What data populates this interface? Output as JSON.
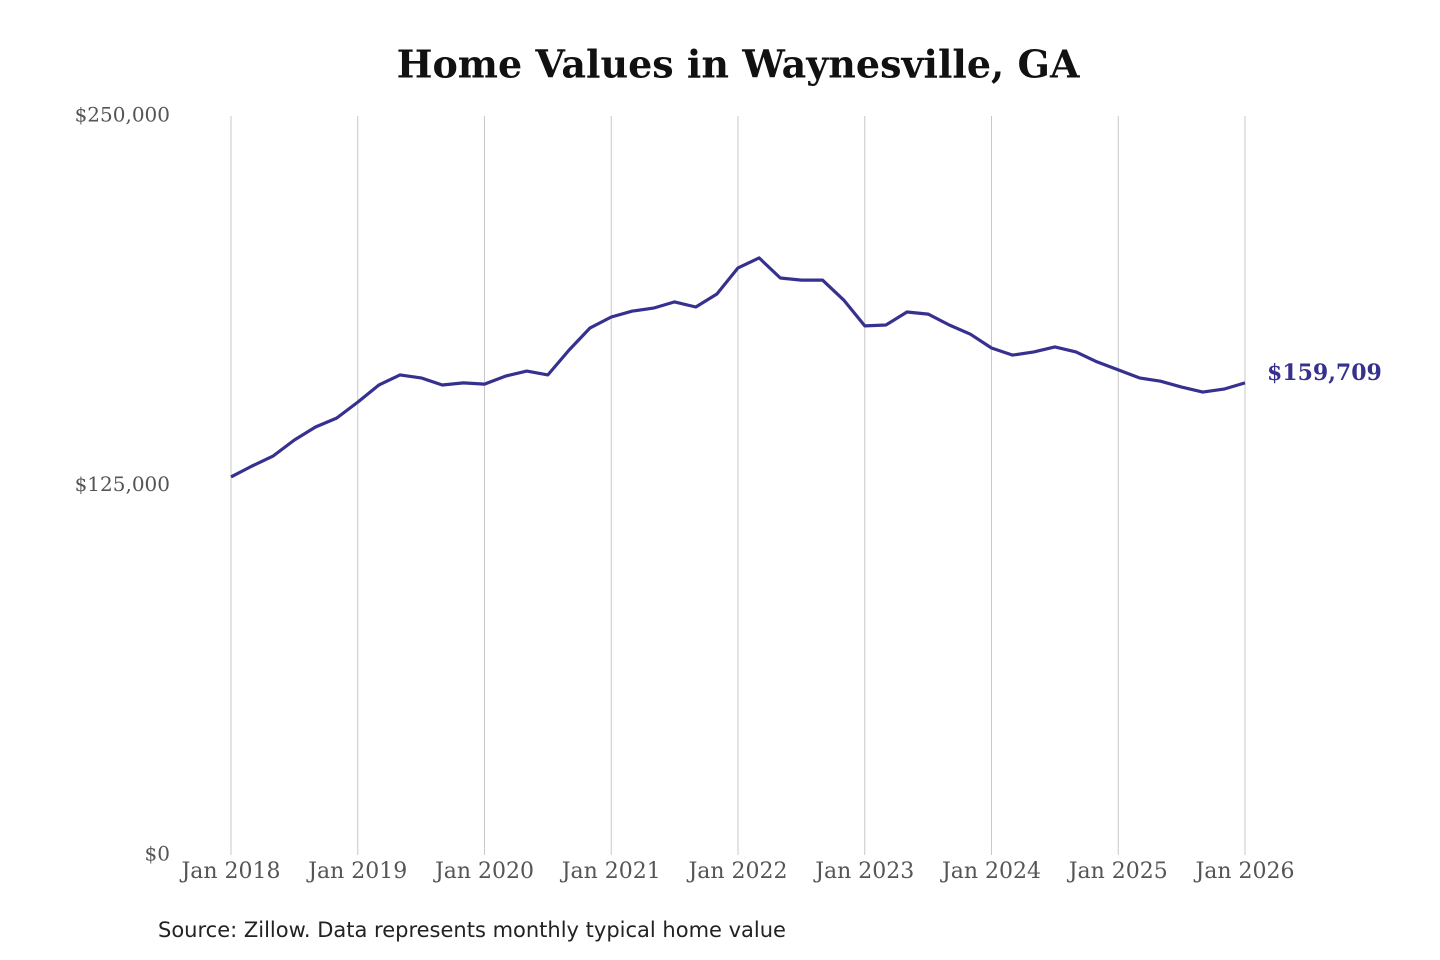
{
  "chart_data": {
    "type": "line",
    "title": "Home Values in Waynesville, GA",
    "source": "Source: Zillow. Data represents monthly typical home value",
    "x": [
      "2018-01",
      "2018-03",
      "2018-05",
      "2018-07",
      "2018-09",
      "2018-11",
      "2019-01",
      "2019-03",
      "2019-05",
      "2019-07",
      "2019-09",
      "2019-11",
      "2020-01",
      "2020-03",
      "2020-05",
      "2020-07",
      "2020-09",
      "2020-11",
      "2021-01",
      "2021-03",
      "2021-05",
      "2021-07",
      "2021-09",
      "2021-11",
      "2022-01",
      "2022-03",
      "2022-05",
      "2022-07",
      "2022-09",
      "2022-11",
      "2023-01",
      "2023-03",
      "2023-05",
      "2023-07",
      "2023-09",
      "2023-11",
      "2024-01",
      "2024-03",
      "2024-05",
      "2024-07",
      "2024-09",
      "2024-11",
      "2025-01",
      "2025-03",
      "2025-05",
      "2025-07",
      "2025-09",
      "2025-11",
      "2026-01"
    ],
    "series": [
      {
        "name": "Home value",
        "color": "#36318f",
        "values": [
          127900,
          131600,
          135000,
          140400,
          144800,
          147800,
          153200,
          159000,
          162400,
          161400,
          159000,
          159700,
          159300,
          162000,
          163700,
          162400,
          170800,
          178300,
          182000,
          184000,
          185000,
          187100,
          185400,
          189800,
          198600,
          202000,
          195200,
          194500,
          194500,
          187800,
          179000,
          179300,
          183700,
          183000,
          179300,
          176200,
          171500,
          169100,
          170200,
          171900,
          170200,
          166800,
          164100,
          161400,
          160300,
          158300,
          156600,
          157600,
          159709
        ],
        "value_labels": [
          null,
          null,
          null,
          null,
          null,
          null,
          null,
          null,
          null,
          null,
          null,
          null,
          null,
          null,
          null,
          null,
          null,
          null,
          null,
          null,
          null,
          null,
          null,
          null,
          null,
          null,
          null,
          null,
          null,
          null,
          null,
          null,
          null,
          null,
          null,
          null,
          null,
          null,
          null,
          null,
          null,
          null,
          null,
          null,
          null,
          null,
          null,
          null,
          "$159,709"
        ]
      }
    ],
    "xlim": [
      "2018-01",
      "2026-01"
    ],
    "xticks": [
      {
        "value": "2018-01",
        "label": "Jan 2018"
      },
      {
        "value": "2019-01",
        "label": "Jan 2019"
      },
      {
        "value": "2020-01",
        "label": "Jan 2020"
      },
      {
        "value": "2021-01",
        "label": "Jan 2021"
      },
      {
        "value": "2022-01",
        "label": "Jan 2022"
      },
      {
        "value": "2023-01",
        "label": "Jan 2023"
      },
      {
        "value": "2024-01",
        "label": "Jan 2024"
      },
      {
        "value": "2025-01",
        "label": "Jan 2025"
      },
      {
        "value": "2026-01",
        "label": "Jan 2026"
      }
    ],
    "ylim": [
      0,
      250000
    ],
    "yticks": [
      {
        "value": 0,
        "label": "$0"
      },
      {
        "value": 125000,
        "label": "$125,000"
      },
      {
        "value": 250000,
        "label": "$250,000"
      }
    ],
    "grid": "x"
  }
}
